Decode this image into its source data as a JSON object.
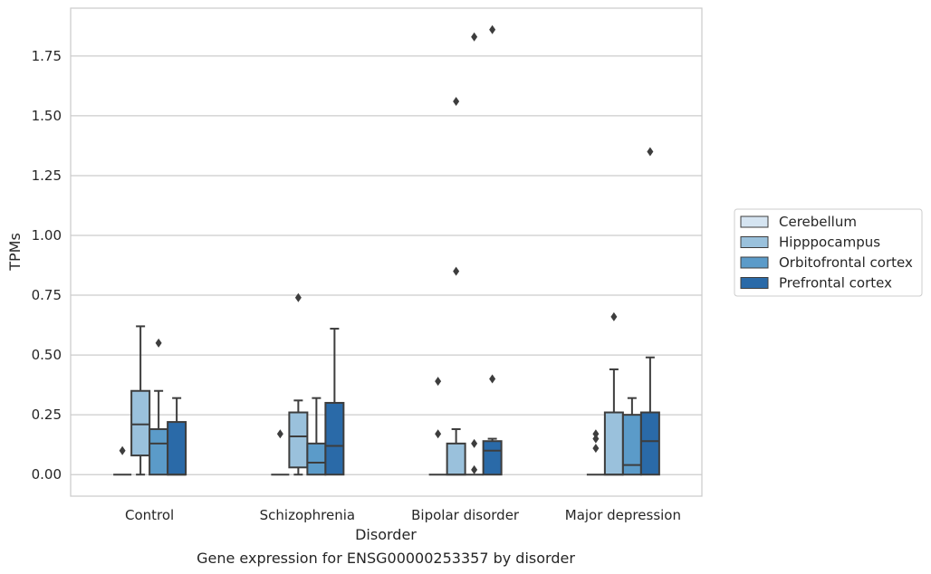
{
  "chart_data": {
    "type": "box",
    "xlabel": "Disorder",
    "ylabel": "TPMs",
    "caption": "Gene expression for ENSG00000253357 by disorder",
    "ylim": [
      -0.09,
      1.95
    ],
    "yticks": [
      0.0,
      0.25,
      0.5,
      0.75,
      1.0,
      1.25,
      1.5,
      1.75
    ],
    "ytick_labels": [
      "0.00",
      "0.25",
      "0.50",
      "0.75",
      "1.00",
      "1.25",
      "1.50",
      "1.75"
    ],
    "grid": "horizontal",
    "legend_position": "right",
    "categories": [
      "Control",
      "Schizophrenia",
      "Bipolar disorder",
      "Major depression"
    ],
    "series": [
      {
        "name": "Cerebellum",
        "color": "#d5e4f1",
        "boxes": [
          {
            "whisker_low": 0.0,
            "q1": 0.0,
            "median": 0.0,
            "q3": 0.0,
            "whisker_high": 0.0,
            "outliers": [
              0.1
            ]
          },
          {
            "whisker_low": 0.0,
            "q1": 0.0,
            "median": 0.0,
            "q3": 0.0,
            "whisker_high": 0.0,
            "outliers": [
              0.17
            ]
          },
          {
            "whisker_low": 0.0,
            "q1": 0.0,
            "median": 0.0,
            "q3": 0.0,
            "whisker_high": 0.0,
            "outliers": [
              0.39,
              0.17
            ]
          },
          {
            "whisker_low": 0.0,
            "q1": 0.0,
            "median": 0.0,
            "q3": 0.0,
            "whisker_high": 0.0,
            "outliers": [
              0.17,
              0.15,
              0.11
            ]
          }
        ]
      },
      {
        "name": "Hipppocampus",
        "color": "#9ac1dc",
        "boxes": [
          {
            "whisker_low": 0.0,
            "q1": 0.08,
            "median": 0.21,
            "q3": 0.35,
            "whisker_high": 0.62,
            "outliers": []
          },
          {
            "whisker_low": 0.0,
            "q1": 0.03,
            "median": 0.16,
            "q3": 0.26,
            "whisker_high": 0.31,
            "outliers": [
              0.74
            ]
          },
          {
            "whisker_low": 0.0,
            "q1": 0.0,
            "median": 0.0,
            "q3": 0.13,
            "whisker_high": 0.19,
            "outliers": [
              1.56,
              0.85
            ]
          },
          {
            "whisker_low": 0.0,
            "q1": 0.0,
            "median": 0.0,
            "q3": 0.26,
            "whisker_high": 0.44,
            "outliers": [
              0.66
            ]
          }
        ]
      },
      {
        "name": "Orbitofrontal cortex",
        "color": "#5b9bc9",
        "boxes": [
          {
            "whisker_low": 0.0,
            "q1": 0.0,
            "median": 0.13,
            "q3": 0.19,
            "whisker_high": 0.35,
            "outliers": [
              0.55
            ]
          },
          {
            "whisker_low": 0.0,
            "q1": 0.0,
            "median": 0.05,
            "q3": 0.13,
            "whisker_high": 0.32,
            "outliers": []
          },
          {
            "whisker_low": 0.0,
            "q1": 0.0,
            "median": 0.0,
            "q3": 0.0,
            "whisker_high": 0.0,
            "outliers": [
              1.83,
              0.13,
              0.02
            ]
          },
          {
            "whisker_low": 0.0,
            "q1": 0.0,
            "median": 0.04,
            "q3": 0.25,
            "whisker_high": 0.32,
            "outliers": []
          }
        ]
      },
      {
        "name": "Prefrontal cortex",
        "color": "#2a6aa8",
        "boxes": [
          {
            "whisker_low": 0.0,
            "q1": 0.0,
            "median": 0.0,
            "q3": 0.22,
            "whisker_high": 0.32,
            "outliers": []
          },
          {
            "whisker_low": 0.0,
            "q1": 0.0,
            "median": 0.12,
            "q3": 0.3,
            "whisker_high": 0.61,
            "outliers": []
          },
          {
            "whisker_low": 0.0,
            "q1": 0.0,
            "median": 0.1,
            "q3": 0.14,
            "whisker_high": 0.15,
            "outliers": [
              1.86,
              0.4
            ]
          },
          {
            "whisker_low": 0.0,
            "q1": 0.0,
            "median": 0.14,
            "q3": 0.26,
            "whisker_high": 0.49,
            "outliers": [
              1.35
            ]
          }
        ]
      }
    ]
  }
}
